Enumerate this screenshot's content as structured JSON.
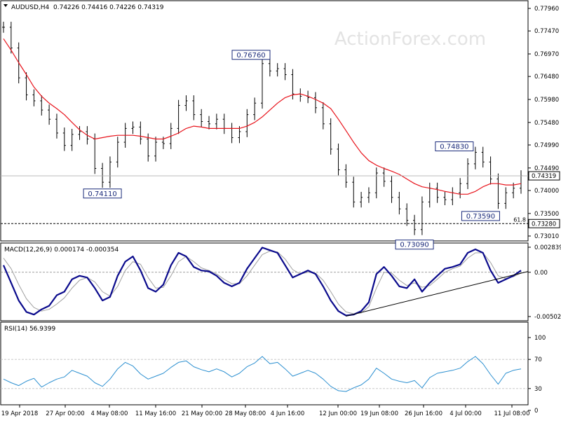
{
  "header": {
    "symbol": "AUDUSD,H4",
    "ohlc": "0.74226 0.74416 0.74226 0.74319"
  },
  "watermark": "ActionForex.com",
  "colors": {
    "candles": "#000000",
    "ma": "#e8131b",
    "macd_line": "#0a0a8c",
    "macd_signal": "#a0a0a0",
    "rsi_line": "#2b8fd0",
    "grid_dash": "#808080"
  },
  "chart_data": [
    {
      "type": "line",
      "panel": "price",
      "title": "AUDUSD,H4",
      "ylim": [
        0.7301,
        0.7796
      ],
      "yticks": [
        "0.77960",
        "0.77470",
        "0.76970",
        "0.76480",
        "0.75980",
        "0.75480",
        "0.74990",
        "0.74490",
        "0.74000",
        "0.73500",
        "0.73010"
      ],
      "x_labels": [
        "19 Apr 2018",
        "27 Apr 00:00",
        "4 May 08:00",
        "11 May 16:00",
        "21 May 00:00",
        "28 May 08:00",
        "4 Jun 16:00",
        "12 Jun 00:00",
        "19 Jun 08:00",
        "26 Jun 16:00",
        "4 Jul 00:00",
        "11 Jul 08:00"
      ],
      "series": [
        {
          "name": "price",
          "values": [
            0.7755,
            0.771,
            0.7645,
            0.7608,
            0.7595,
            0.7575,
            0.7555,
            0.7525,
            0.7498,
            0.7522,
            0.7528,
            0.7512,
            0.7448,
            0.7418,
            0.7462,
            0.7505,
            0.7535,
            0.7538,
            0.7512,
            0.7475,
            0.7505,
            0.7502,
            0.7535,
            0.7585,
            0.7595,
            0.7565,
            0.755,
            0.7545,
            0.7555,
            0.7535,
            0.7515,
            0.7528,
            0.7565,
            0.759,
            0.7676,
            0.766,
            0.7665,
            0.7652,
            0.761,
            0.7605,
            0.7602,
            0.758,
            0.7545,
            0.749,
            0.7445,
            0.7418,
            0.7375,
            0.7385,
            0.7395,
            0.7438,
            0.742,
            0.7385,
            0.736,
            0.7335,
            0.7315,
            0.7375,
            0.7405,
            0.7385,
            0.738,
            0.7395,
            0.7415,
            0.7458,
            0.7483,
            0.7462,
            0.7425,
            0.7372,
            0.7395,
            0.7405,
            0.7432
          ]
        },
        {
          "name": "MA",
          "values": [
            0.773,
            0.7705,
            0.7678,
            0.7652,
            0.7625,
            0.7605,
            0.759,
            0.7578,
            0.7565,
            0.7548,
            0.7532,
            0.752,
            0.7512,
            0.7515,
            0.7518,
            0.752,
            0.752,
            0.752,
            0.7518,
            0.7515,
            0.7512,
            0.7512,
            0.7518,
            0.7525,
            0.7535,
            0.754,
            0.7538,
            0.7535,
            0.7535,
            0.7535,
            0.7535,
            0.7535,
            0.754,
            0.7548,
            0.756,
            0.7575,
            0.759,
            0.7602,
            0.7608,
            0.761,
            0.7605,
            0.7598,
            0.759,
            0.7578,
            0.7555,
            0.753,
            0.7505,
            0.7482,
            0.7465,
            0.7455,
            0.7448,
            0.7442,
            0.7435,
            0.7425,
            0.7415,
            0.7408,
            0.7405,
            0.7402,
            0.7398,
            0.7395,
            0.7392,
            0.7392,
            0.7398,
            0.7408,
            0.7415,
            0.7415,
            0.7412,
            0.7412,
            0.7415
          ]
        }
      ],
      "annotations": [
        "0.74110",
        "0.76760",
        "0.74830",
        "0.73590",
        "0.73090",
        "61.8"
      ],
      "price_label": "0.74319",
      "level_label": "0.73280"
    },
    {
      "type": "line",
      "panel": "macd",
      "title": "MACD(12,26,9) 0.000174 -0.000354",
      "ylim": [
        -0.005021,
        0.002839
      ],
      "yticks": [
        "0.002839",
        "0.00",
        "-0.005021"
      ],
      "series": [
        {
          "name": "MACD",
          "values": [
            0.0008,
            -0.0012,
            -0.0032,
            -0.0045,
            -0.0048,
            -0.0042,
            -0.0038,
            -0.0026,
            -0.0022,
            -0.0008,
            -0.0004,
            -0.0006,
            -0.0018,
            -0.0032,
            -0.0028,
            -0.0004,
            0.0012,
            0.0018,
            0.0002,
            -0.0018,
            -0.0022,
            -0.0014,
            0.0008,
            0.0022,
            0.0018,
            0.0006,
            0.0002,
            0.0001,
            -0.0004,
            -0.0012,
            -0.0016,
            -0.0012,
            0.0004,
            0.0016,
            0.0028,
            0.0025,
            0.0022,
            0.0008,
            -0.0006,
            -0.0002,
            0.0002,
            -0.0002,
            -0.0016,
            -0.0032,
            -0.0044,
            -0.0049,
            -0.0048,
            -0.0044,
            -0.0034,
            -0.0002,
            0.0006,
            -0.0004,
            -0.0016,
            -0.0018,
            -0.0008,
            -0.0022,
            -0.0012,
            -0.0004,
            0.0004,
            0.0006,
            0.0009,
            0.0022,
            0.0026,
            0.0022,
            0.0002,
            -0.0012,
            -0.0008,
            -0.0004,
            0.0002
          ]
        },
        {
          "name": "Signal",
          "values": [
            0.0016,
            0.0004,
            -0.0014,
            -0.003,
            -0.004,
            -0.0044,
            -0.0042,
            -0.0036,
            -0.0029,
            -0.0018,
            -0.0009,
            -0.0006,
            -0.0011,
            -0.0022,
            -0.0027,
            -0.0016,
            0.0002,
            0.0012,
            0.0009,
            -0.0006,
            -0.0018,
            -0.0017,
            -0.0004,
            0.0012,
            0.0018,
            0.0012,
            0.0005,
            0.0002,
            -0.0002,
            -0.0008,
            -0.0013,
            -0.0013,
            -0.0004,
            0.0008,
            0.002,
            0.0024,
            0.0023,
            0.0015,
            0.0003,
            -0.0002,
            0.0,
            -0.0001,
            -0.0009,
            -0.0022,
            -0.0036,
            -0.0045,
            -0.0047,
            -0.0046,
            -0.0039,
            -0.0018,
            0.0,
            -0.0001,
            -0.0009,
            -0.0015,
            -0.0012,
            -0.0017,
            -0.0015,
            -0.0008,
            0.0,
            0.0004,
            0.0007,
            0.0016,
            0.0022,
            0.0022,
            0.0011,
            -0.0004,
            -0.0007,
            -0.0005,
            -0.0001
          ]
        }
      ]
    },
    {
      "type": "line",
      "panel": "rsi",
      "title": "RSI(14) 56.9399",
      "ylim": [
        0,
        100
      ],
      "yticks": [
        "100",
        "70",
        "30",
        "0"
      ],
      "series": [
        {
          "name": "RSI",
          "values": [
            43,
            38,
            34,
            40,
            44,
            32,
            38,
            43,
            46,
            55,
            51,
            47,
            38,
            33,
            43,
            57,
            66,
            61,
            50,
            43,
            47,
            51,
            59,
            66,
            68,
            60,
            56,
            53,
            57,
            53,
            46,
            51,
            60,
            65,
            74,
            64,
            66,
            57,
            47,
            51,
            55,
            51,
            43,
            33,
            27,
            26,
            31,
            35,
            43,
            58,
            51,
            43,
            40,
            38,
            41,
            31,
            45,
            51,
            53,
            55,
            58,
            67,
            74,
            64,
            49,
            36,
            51,
            55,
            57
          ]
        }
      ]
    }
  ]
}
